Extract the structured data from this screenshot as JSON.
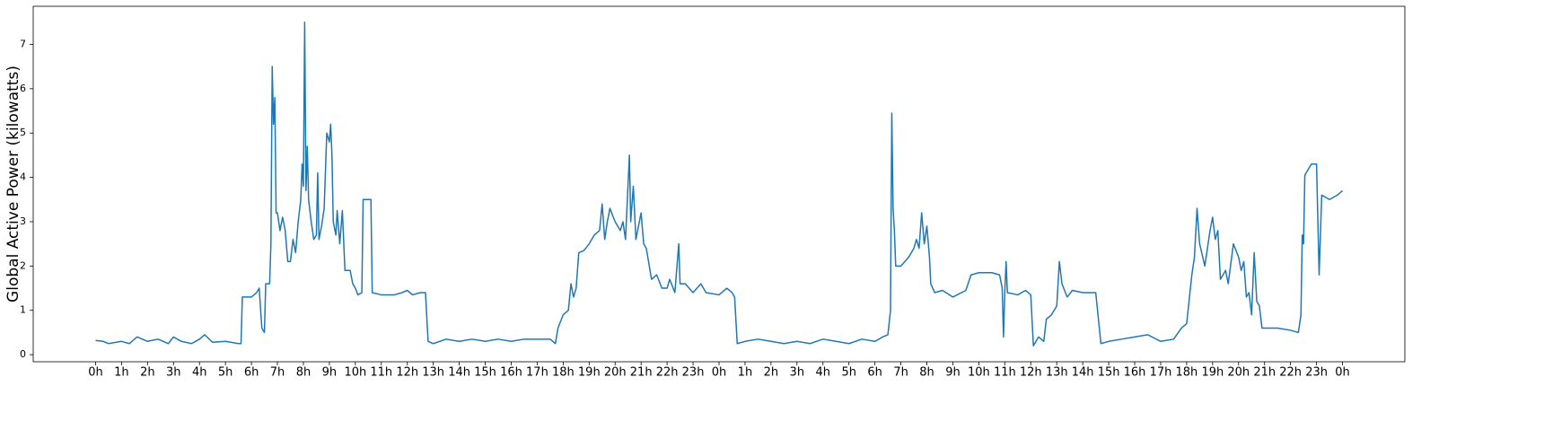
{
  "chart_data": {
    "type": "line",
    "y_label": "Global Active Power (kilowatts)",
    "xlim": [
      -2.4,
      50.4
    ],
    "ylim": [
      -0.16,
      7.86
    ],
    "yticks": [
      0,
      1,
      2,
      3,
      4,
      5,
      6,
      7
    ],
    "xticks": [
      {
        "value": 0,
        "label": "0h"
      },
      {
        "value": 1,
        "label": "1h"
      },
      {
        "value": 2,
        "label": "2h"
      },
      {
        "value": 3,
        "label": "3h"
      },
      {
        "value": 4,
        "label": "4h"
      },
      {
        "value": 5,
        "label": "5h"
      },
      {
        "value": 6,
        "label": "6h"
      },
      {
        "value": 7,
        "label": "7h"
      },
      {
        "value": 8,
        "label": "8h"
      },
      {
        "value": 9,
        "label": "9h"
      },
      {
        "value": 10,
        "label": "10h"
      },
      {
        "value": 11,
        "label": "11h"
      },
      {
        "value": 12,
        "label": "12h"
      },
      {
        "value": 13,
        "label": "13h"
      },
      {
        "value": 14,
        "label": "14h"
      },
      {
        "value": 15,
        "label": "15h"
      },
      {
        "value": 16,
        "label": "16h"
      },
      {
        "value": 17,
        "label": "17h"
      },
      {
        "value": 18,
        "label": "18h"
      },
      {
        "value": 19,
        "label": "19h"
      },
      {
        "value": 20,
        "label": "20h"
      },
      {
        "value": 21,
        "label": "21h"
      },
      {
        "value": 22,
        "label": "22h"
      },
      {
        "value": 23,
        "label": "23h"
      },
      {
        "value": 24,
        "label": "0h"
      },
      {
        "value": 25,
        "label": "1h"
      },
      {
        "value": 26,
        "label": "2h"
      },
      {
        "value": 27,
        "label": "3h"
      },
      {
        "value": 28,
        "label": "4h"
      },
      {
        "value": 29,
        "label": "5h"
      },
      {
        "value": 30,
        "label": "6h"
      },
      {
        "value": 31,
        "label": "7h"
      },
      {
        "value": 32,
        "label": "8h"
      },
      {
        "value": 33,
        "label": "9h"
      },
      {
        "value": 34,
        "label": "10h"
      },
      {
        "value": 35,
        "label": "11h"
      },
      {
        "value": 36,
        "label": "12h"
      },
      {
        "value": 37,
        "label": "13h"
      },
      {
        "value": 38,
        "label": "14h"
      },
      {
        "value": 39,
        "label": "15h"
      },
      {
        "value": 40,
        "label": "16h"
      },
      {
        "value": 41,
        "label": "17h"
      },
      {
        "value": 42,
        "label": "18h"
      },
      {
        "value": 43,
        "label": "19h"
      },
      {
        "value": 44,
        "label": "20h"
      },
      {
        "value": 45,
        "label": "21h"
      },
      {
        "value": 46,
        "label": "22h"
      },
      {
        "value": 47,
        "label": "23h"
      },
      {
        "value": 48,
        "label": "0h"
      }
    ],
    "x": [
      0,
      0.3,
      0.5,
      1,
      1.3,
      1.6,
      2,
      2.4,
      2.8,
      3,
      3.3,
      3.7,
      4,
      4.2,
      4.5,
      5,
      5.5,
      5.6,
      5.65,
      6,
      6.2,
      6.3,
      6.4,
      6.5,
      6.55,
      6.7,
      6.75,
      6.8,
      6.85,
      6.9,
      6.95,
      7.0,
      7.1,
      7.2,
      7.3,
      7.4,
      7.5,
      7.6,
      7.7,
      7.8,
      7.9,
      7.95,
      8.0,
      8.05,
      8.1,
      8.15,
      8.2,
      8.3,
      8.4,
      8.5,
      8.55,
      8.6,
      8.7,
      8.8,
      8.9,
      9.0,
      9.05,
      9.1,
      9.15,
      9.25,
      9.3,
      9.4,
      9.5,
      9.6,
      9.8,
      9.9,
      10.0,
      10.1,
      10.25,
      10.3,
      10.5,
      10.6,
      10.65,
      11,
      11.5,
      11.8,
      12,
      12.2,
      12.5,
      12.7,
      12.8,
      13,
      13.5,
      14,
      14.5,
      15,
      15.5,
      16,
      16.5,
      17,
      17.5,
      17.7,
      17.8,
      18,
      18.2,
      18.3,
      18.4,
      18.5,
      18.6,
      18.8,
      19,
      19.2,
      19.4,
      19.5,
      19.6,
      19.7,
      19.8,
      20.0,
      20.2,
      20.3,
      20.4,
      20.55,
      20.6,
      20.7,
      20.8,
      21.0,
      21.1,
      21.2,
      21.4,
      21.6,
      21.8,
      22,
      22.1,
      22.3,
      22.45,
      22.5,
      22.7,
      23,
      23.3,
      23.5,
      24,
      24.3,
      24.5,
      24.6,
      24.7,
      25,
      25.5,
      26,
      26.5,
      27,
      27.5,
      28,
      28.5,
      29,
      29.5,
      30,
      30.3,
      30.5,
      30.6,
      30.65,
      30.7,
      30.75,
      30.8,
      31,
      31.3,
      31.5,
      31.6,
      31.7,
      31.8,
      31.9,
      32,
      32.1,
      32.15,
      32.3,
      32.6,
      33,
      33.5,
      33.7,
      34,
      34.5,
      34.8,
      34.9,
      34.95,
      35.0,
      35.05,
      35.1,
      35.5,
      35.8,
      36.0,
      36.1,
      36.3,
      36.5,
      36.6,
      36.8,
      37.0,
      37.1,
      37.2,
      37.4,
      37.6,
      38,
      38.5,
      38.7,
      39,
      39.5,
      40,
      40.5,
      41,
      41.5,
      41.8,
      42,
      42.2,
      42.3,
      42.4,
      42.5,
      42.7,
      42.9,
      43.0,
      43.1,
      43.2,
      43.3,
      43.5,
      43.6,
      43.8,
      44.0,
      44.1,
      44.2,
      44.3,
      44.4,
      44.5,
      44.6,
      44.7,
      44.8,
      44.9,
      45,
      45.5,
      46,
      46.3,
      46.4,
      46.45,
      46.5,
      46.55,
      46.8,
      47.0,
      47.1,
      47.2,
      47.5,
      47.8,
      48
    ],
    "series": [
      {
        "color": "#1f77b4",
        "values": [
          0.32,
          0.3,
          0.25,
          0.3,
          0.25,
          0.4,
          0.3,
          0.35,
          0.25,
          0.4,
          0.3,
          0.25,
          0.35,
          0.45,
          0.28,
          0.3,
          0.25,
          0.25,
          1.3,
          1.3,
          1.4,
          1.5,
          0.6,
          0.5,
          1.6,
          1.6,
          2.5,
          6.5,
          5.2,
          5.8,
          3.2,
          3.2,
          2.8,
          3.1,
          2.8,
          2.1,
          2.1,
          2.6,
          2.3,
          3.0,
          3.5,
          4.3,
          3.8,
          7.5,
          3.7,
          4.7,
          3.5,
          3.0,
          2.6,
          2.7,
          4.1,
          2.6,
          2.9,
          3.3,
          5.0,
          4.8,
          5.2,
          4.5,
          3.0,
          2.7,
          3.25,
          2.5,
          3.25,
          1.9,
          1.9,
          1.6,
          1.5,
          1.35,
          1.4,
          3.5,
          3.5,
          3.5,
          1.4,
          1.35,
          1.35,
          1.4,
          1.45,
          1.35,
          1.4,
          1.4,
          0.3,
          0.25,
          0.35,
          0.3,
          0.35,
          0.3,
          0.35,
          0.3,
          0.35,
          0.35,
          0.35,
          0.25,
          0.6,
          0.9,
          1.0,
          1.6,
          1.3,
          1.5,
          2.3,
          2.35,
          2.5,
          2.7,
          2.8,
          3.4,
          2.6,
          3.0,
          3.3,
          3.0,
          2.8,
          3.0,
          2.6,
          4.5,
          3.0,
          3.8,
          2.6,
          3.2,
          2.5,
          2.4,
          1.7,
          1.8,
          1.5,
          1.5,
          1.7,
          1.4,
          2.5,
          1.6,
          1.6,
          1.4,
          1.6,
          1.4,
          1.35,
          1.5,
          1.4,
          1.3,
          0.25,
          0.3,
          0.35,
          0.3,
          0.25,
          0.3,
          0.25,
          0.35,
          0.3,
          0.25,
          0.35,
          0.3,
          0.4,
          0.45,
          1.0,
          5.45,
          3.3,
          2.8,
          2.0,
          2.0,
          2.2,
          2.4,
          2.6,
          2.4,
          3.2,
          2.5,
          2.9,
          2.2,
          1.6,
          1.4,
          1.45,
          1.3,
          1.45,
          1.8,
          1.85,
          1.85,
          1.8,
          1.5,
          0.4,
          1.4,
          2.1,
          1.4,
          1.35,
          1.45,
          1.35,
          0.2,
          0.4,
          0.3,
          0.8,
          0.9,
          1.1,
          2.1,
          1.6,
          1.3,
          1.45,
          1.4,
          1.4,
          0.25,
          0.3,
          0.35,
          0.4,
          0.45,
          0.3,
          0.35,
          0.6,
          0.7,
          1.8,
          2.2,
          3.3,
          2.5,
          2.0,
          2.8,
          3.1,
          2.6,
          2.8,
          1.7,
          1.9,
          1.6,
          2.5,
          2.2,
          1.9,
          2.1,
          1.3,
          1.4,
          0.9,
          2.3,
          1.2,
          1.1,
          0.6,
          0.6,
          0.6,
          0.55,
          0.5,
          0.9,
          2.7,
          2.5,
          4.05,
          4.3,
          4.3,
          1.8,
          3.6,
          3.5,
          3.6,
          3.7
        ]
      }
    ]
  }
}
